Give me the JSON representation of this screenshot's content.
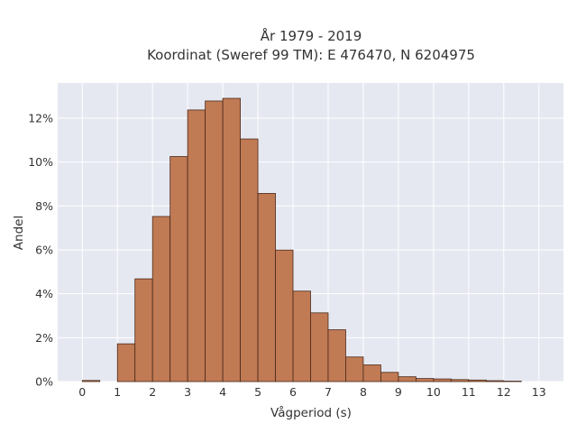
{
  "chart_data": {
    "type": "bar",
    "title_lines": [
      "År 1979 - 2019",
      "Koordinat (Sweref 99 TM): E 476470, N 6204975"
    ],
    "xlabel": "Vågperiod (s)",
    "ylabel": "Andel",
    "bin_width": 0.5,
    "x_bin_starts": [
      0,
      0.5,
      1,
      1.5,
      2,
      2.5,
      3,
      3.5,
      4,
      4.5,
      5,
      5.5,
      6,
      6.5,
      7,
      7.5,
      8,
      8.5,
      9,
      9.5,
      10,
      10.5,
      11,
      11.5,
      12
    ],
    "values": [
      0.05,
      0,
      1.72,
      4.68,
      7.52,
      10.25,
      12.37,
      12.78,
      12.9,
      11.05,
      8.57,
      5.99,
      4.12,
      3.13,
      2.36,
      1.12,
      0.76,
      0.42,
      0.22,
      0.14,
      0.12,
      0.09,
      0.07,
      0.04,
      0.02
    ],
    "x_ticks": [
      0,
      1,
      2,
      3,
      4,
      5,
      6,
      7,
      8,
      9,
      10,
      11,
      12,
      13
    ],
    "y_ticks": [
      0,
      2,
      4,
      6,
      8,
      10,
      12
    ],
    "y_tick_suffix": "%",
    "xlim": [
      -0.7,
      13.7
    ],
    "ylim": [
      0,
      13.6
    ],
    "grid": true,
    "colors": {
      "bar_fill": "#c07a54",
      "bar_stroke": "#4a2a1a",
      "plot_background": "#e6e8f1",
      "grid": "#ffffff"
    }
  }
}
